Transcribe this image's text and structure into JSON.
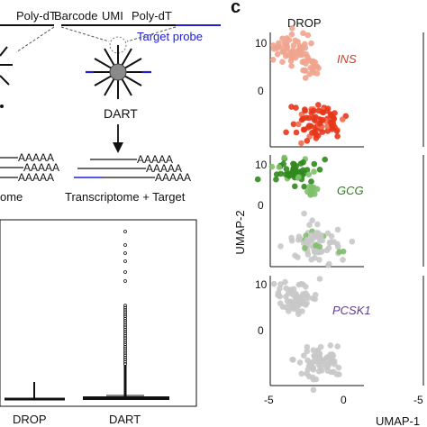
{
  "panel_letters": {
    "c": "c"
  },
  "schematic": {
    "drop": {
      "label_polydt_left": "Poly-dT",
      "reads": [
        "AAAAA",
        "AAAAA",
        "AAAAA"
      ],
      "caption_partial": "ome"
    },
    "dart": {
      "label_barcode": "Barcode",
      "label_umi": "UMI",
      "label_polydt": "Poly-dT",
      "label_target_probe": "Target probe",
      "name": "DART",
      "reads": [
        "AAAAA",
        "AAAAA",
        "AAAAA"
      ],
      "caption": "Transcriptome + Target"
    },
    "colors": {
      "target": "#1f1fd6",
      "bead": "#8a8a8a",
      "line": "#111111"
    }
  },
  "boxplot": {
    "categories": [
      "DROP",
      "DART"
    ],
    "outliers": {
      "DART_top": 0.93,
      "DROP_max": 0.1
    }
  },
  "umap": {
    "column_title": "DROP",
    "ylabel": "UMAP-2",
    "xlabel_partial": "UMAP-1",
    "xticks": [
      "-5",
      "0"
    ],
    "right_xtick_partial": "-5",
    "panels": [
      {
        "gene": "INS",
        "gene_color": "#d43a22",
        "yticks": [
          "10",
          "0"
        ]
      },
      {
        "gene": "GCG",
        "gene_color": "#2e7d1f",
        "yticks": [
          "10",
          "0"
        ]
      },
      {
        "gene": "PCSK1",
        "gene_color": "#5a3e8c",
        "yticks": [
          "10",
          "0"
        ]
      }
    ],
    "colors": {
      "ins_high": "#e8361b",
      "ins_low": "#f0a48e",
      "gcg_high": "#2f8a1c",
      "gcg_mid": "#7fbf6a",
      "grey": "#c8c8c8"
    }
  }
}
